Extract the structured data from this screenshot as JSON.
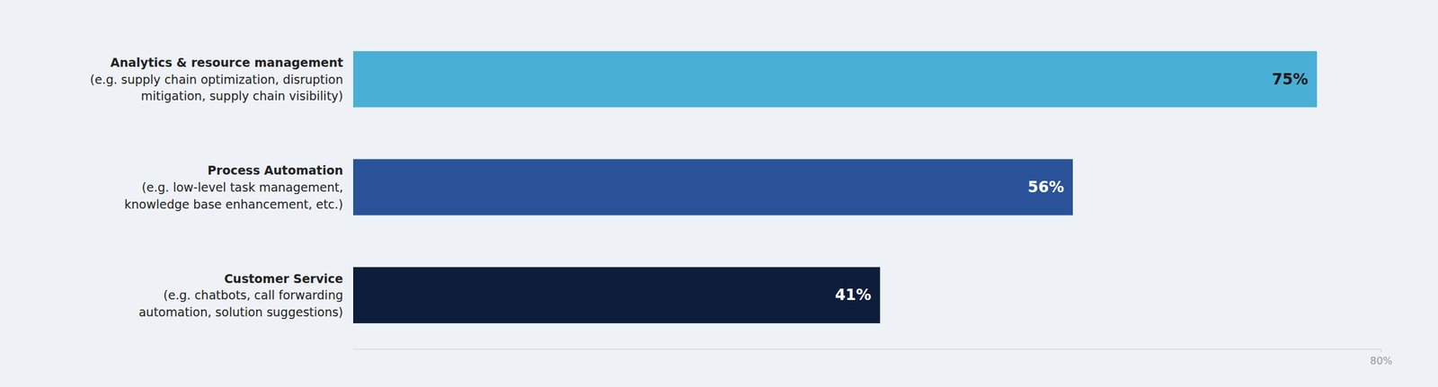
{
  "chart_data": {
    "type": "bar",
    "orientation": "horizontal",
    "categories": [
      "Customer Service\n(e.g. chatbots, call forwarding\nautomation, solution suggestions)",
      "Process Automation\n(e.g. low-level task management,\nknowledge base enhancement, etc.)",
      "Analytics & resource management\n(e.g. supply chain optimization, disruption\nmitigation, supply chain visibility)"
    ],
    "values": [
      41,
      56,
      75
    ],
    "value_labels": [
      "41%",
      "56%",
      "75%"
    ],
    "colors": [
      "#0d1e3c",
      "#2a5298",
      "#4aafd4"
    ],
    "xlim": [
      0,
      80
    ],
    "xticks": [
      {
        "value": 80,
        "label": "80%"
      }
    ],
    "data_labels": true,
    "grid": false
  }
}
